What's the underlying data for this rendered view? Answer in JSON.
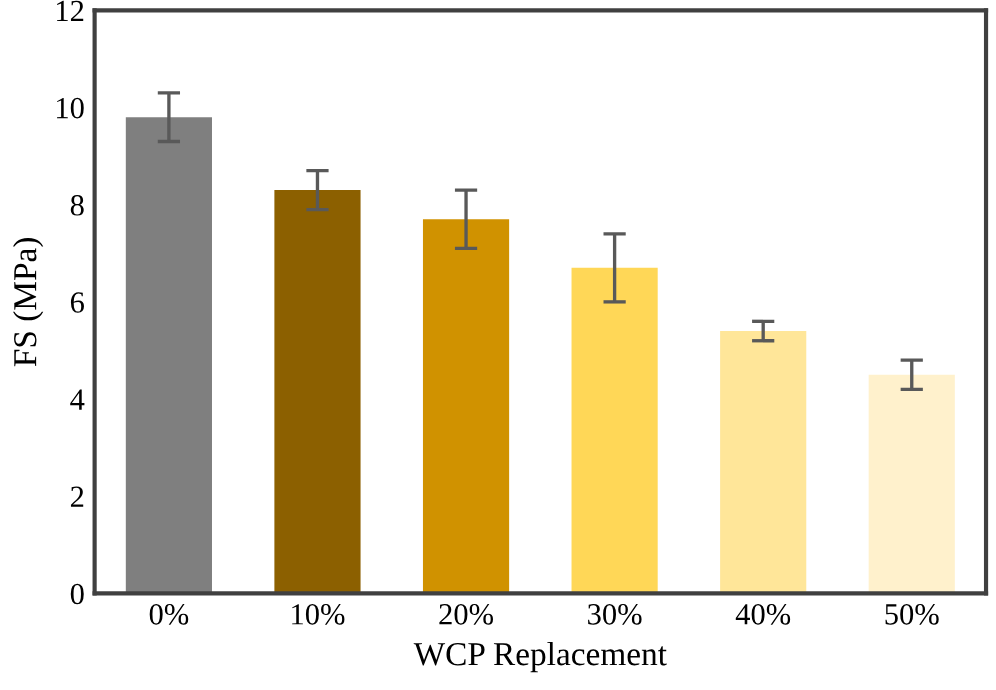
{
  "chart_data": {
    "type": "bar",
    "xlabel": "WCP Replacement",
    "ylabel": "FS (MPa)",
    "categories": [
      "0%",
      "10%",
      "20%",
      "30%",
      "40%",
      "50%"
    ],
    "values": [
      9.8,
      8.3,
      7.7,
      6.7,
      5.4,
      4.5
    ],
    "errors": [
      0.5,
      0.4,
      0.6,
      0.7,
      0.2,
      0.3
    ],
    "colors": [
      "#7f7f7f",
      "#8c6000",
      "#d09200",
      "#ffd757",
      "#ffe699",
      "#fff1cc"
    ],
    "ylim": [
      0,
      12
    ],
    "yticks": [
      0,
      2,
      4,
      6,
      8,
      10,
      12
    ],
    "grid": false
  }
}
